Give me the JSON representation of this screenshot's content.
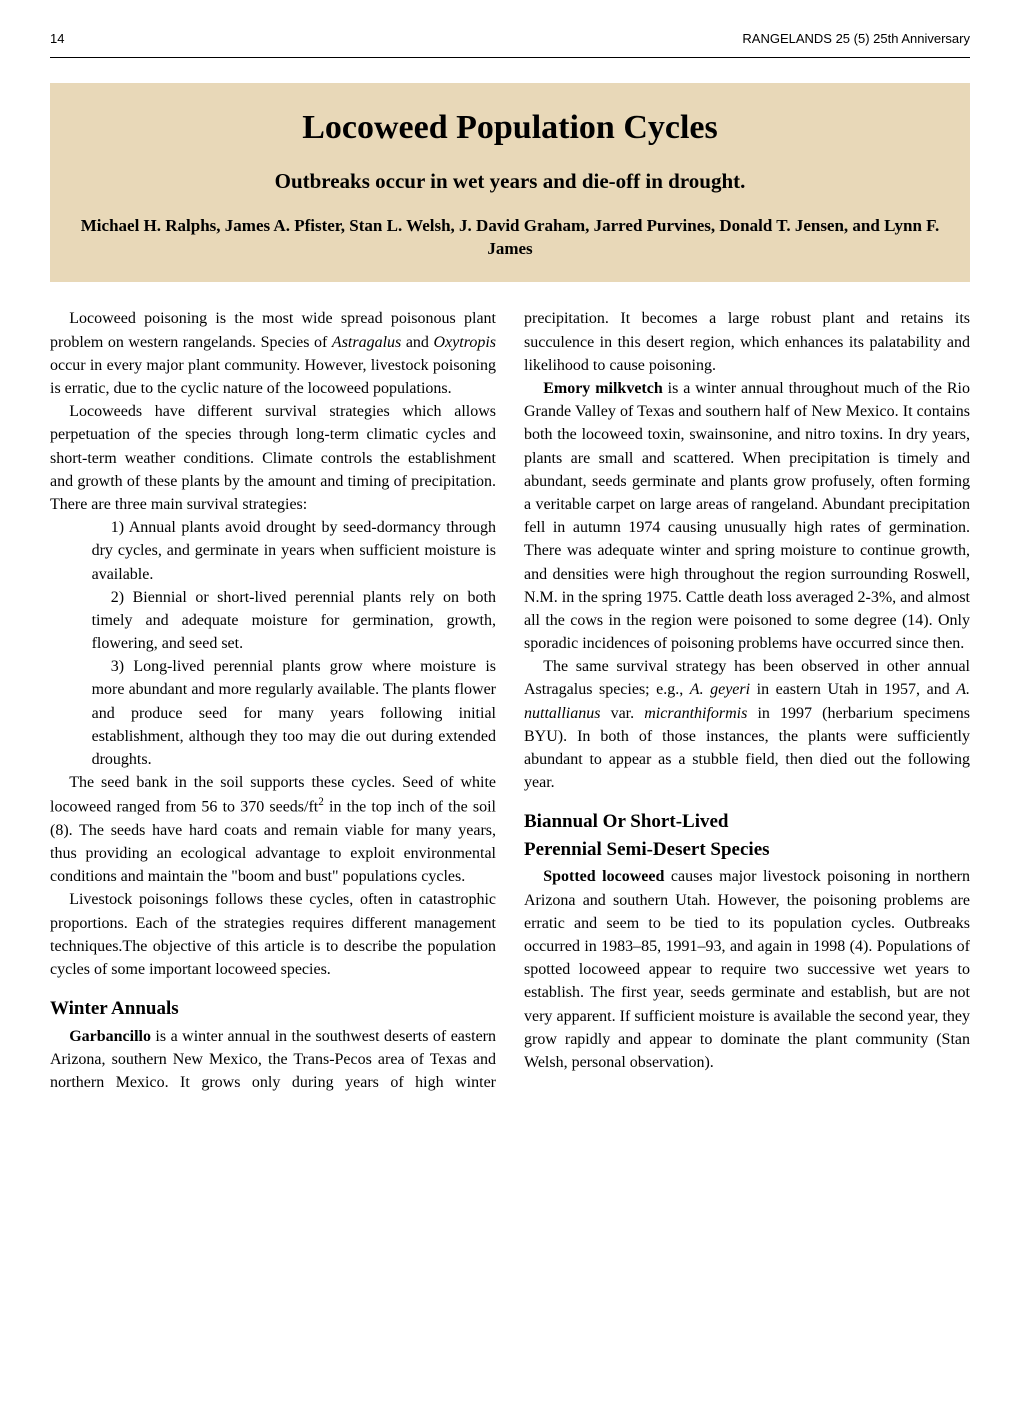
{
  "header": {
    "page_number": "14",
    "journal": "RANGELANDS 25 (5) 25th Anniversary"
  },
  "title": {
    "main": "Locoweed Population Cycles",
    "subtitle": "Outbreaks occur in wet years and die-off in drought.",
    "authors": "Michael H. Ralphs, James A. Pfister, Stan L. Welsh, J. David Graham, Jarred Purvines, Donald T. Jensen, and Lynn F. James"
  },
  "body": {
    "p1": "Locoweed poisoning is the most wide spread poisonous plant problem on western rangelands. Species of ",
    "p1_i1": "Astragalus",
    "p1_mid": " and ",
    "p1_i2": "Oxytropis",
    "p1_end": " occur in every major plant community. However, livestock poisoning is erratic, due to the cyclic nature of the locoweed populations.",
    "p2": "Locoweeds have different survival strategies which allows perpetuation of the species through long-term climatic cycles and short-term weather conditions. Climate controls the establishment and growth of these plants by the amount and timing of precipitation. There are three main survival strategies:",
    "li1": "1) Annual plants avoid drought by seed-dormancy through dry cycles, and germinate in years when sufficient moisture is available.",
    "li2": "2) Biennial or short-lived perennial plants rely on both timely and adequate moisture for germination, growth, flowering, and seed set.",
    "li3": "3) Long-lived perennial plants grow where moisture is more abundant and more regularly available. The plants flower and produce seed for many years following initial establishment, although they too may die out during extended droughts.",
    "p3a": "The seed bank in the soil supports these cycles. Seed of white locoweed ranged from 56 to 370 seeds/ft",
    "p3_sup": "2",
    "p3b": " in the top inch of the soil (8). The seeds have hard coats and remain viable for many years, thus providing an ecological advantage to exploit environmental conditions and maintain the \"boom and bust\" populations cycles.",
    "p4": "Livestock poisonings follows these cycles, often in catastrophic proportions. Each of the strategies requires different management techniques.The objective of this article is to describe the population cycles of some important locoweed species.",
    "h1": "Winter Annuals",
    "p5_bold": "Garbancillo",
    "p5": " is a winter annual in the southwest deserts of eastern Arizona, southern New Mexico, the Trans-Pecos area of Texas and northern Mexico. It grows only during years of high winter precipitation. It becomes a large robust plant and retains its succulence in this desert region, which enhances its palatability and likelihood to cause poisoning.",
    "p6_bold": "Emory milkvetch",
    "p6": " is a winter annual throughout much of the Rio Grande Valley of Texas and southern half of New Mexico. It contains both the locoweed toxin, swainsonine, and nitro toxins. In dry years, plants are small and scattered. When precipitation is timely and abundant, seeds germinate and plants grow profusely, often forming a veritable carpet on large areas of rangeland. Abundant precipitation fell in autumn 1974 causing unusually high rates of germination. There was adequate winter and spring moisture to continue growth, and densities were high throughout the region surrounding Roswell, N.M. in the spring 1975. Cattle death loss averaged 2-3%, and almost all the cows in the region were poisoned to some degree (14). Only sporadic incidences of poisoning problems have occurred since then.",
    "p7a": "The same survival strategy has been observed in other annual Astragalus species; e.g., ",
    "p7_i1": "A. geyeri",
    "p7b": " in eastern Utah in 1957, and ",
    "p7_i2": "A. nuttallianus",
    "p7c": " var. ",
    "p7_i3": "micranthiformis",
    "p7d": " in 1997 (herbarium specimens BYU). In both of those instances, the plants were sufficiently abundant to appear as a stubble field, then died out the following year.",
    "h2a": "Biannual Or Short-Lived",
    "h2b": "Perennial Semi-Desert Species",
    "p8_bold": "Spotted locoweed",
    "p8": " causes major livestock poisoning in northern Arizona and southern Utah. However, the poisoning problems are erratic and seem to be tied to its population cycles. Outbreaks occurred in 1983–85, 1991–93, and again in 1998 (4). Populations of spotted locoweed appear to require two successive wet years to establish. The first year, seeds germinate and establish, but are not very apparent. If sufficient moisture is available the second year, they grow rapidly and appear to dominate the plant community (Stan Welsh, personal observation)."
  },
  "colors": {
    "title_bg": "#e8d8b8",
    "text": "#000000",
    "background": "#ffffff"
  },
  "typography": {
    "title_main_size": 34,
    "title_sub_size": 21,
    "authors_size": 17,
    "body_size": 16,
    "heading_size": 19,
    "header_size": 13
  }
}
